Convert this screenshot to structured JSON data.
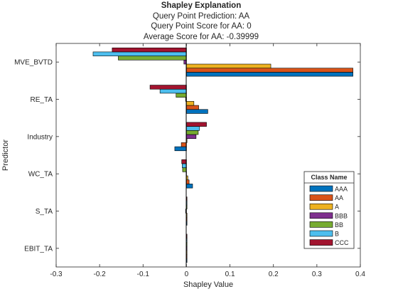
{
  "chart_data": {
    "type": "bar",
    "orientation": "horizontal",
    "title": "Shapley Explanation",
    "subtitle_lines": [
      "Query Point Prediction: AA",
      "Query Point Score for AA: 0",
      "Average Score for AA: -0.39999"
    ],
    "xlabel": "Shapley Value",
    "ylabel": "Predictor",
    "xlim": [
      -0.3,
      0.4
    ],
    "xticks": [
      -0.3,
      -0.2,
      -0.1,
      0,
      0.1,
      0.2,
      0.3,
      0.4
    ],
    "xtick_labels": [
      "-0.3",
      "-0.2",
      "-0.1",
      "0",
      "0.1",
      "0.2",
      "0.3",
      "0.4"
    ],
    "categories": [
      "MVE_BVTD",
      "RE_TA",
      "Industry",
      "WC_TA",
      "S_TA",
      "EBIT_TA"
    ],
    "legend_title": "Class Name",
    "legend_position": "bottom-right",
    "grid": false,
    "series": [
      {
        "name": "AAA",
        "color": "#0072BD",
        "values": [
          0.383,
          0.049,
          -0.027,
          0.014,
          0.0,
          0.0
        ]
      },
      {
        "name": "AA",
        "color": "#D95319",
        "values": [
          0.383,
          0.028,
          -0.012,
          0.006,
          0.0,
          0.0
        ]
      },
      {
        "name": "A",
        "color": "#EDB120",
        "values": [
          0.194,
          0.017,
          0.0,
          0.003,
          0.0,
          0.0
        ]
      },
      {
        "name": "BBB",
        "color": "#7E2F8E",
        "values": [
          -0.006,
          -0.002,
          0.022,
          -0.001,
          -0.002,
          0.0
        ]
      },
      {
        "name": "BB",
        "color": "#77AC30",
        "values": [
          -0.157,
          -0.024,
          0.027,
          -0.009,
          0.0,
          0.0
        ]
      },
      {
        "name": "B",
        "color": "#4DBEEE",
        "values": [
          -0.215,
          -0.061,
          0.03,
          -0.01,
          0.0,
          0.0
        ]
      },
      {
        "name": "CCC",
        "color": "#A2142F",
        "values": [
          -0.171,
          -0.084,
          0.046,
          -0.011,
          0.0,
          0.0
        ]
      }
    ]
  }
}
